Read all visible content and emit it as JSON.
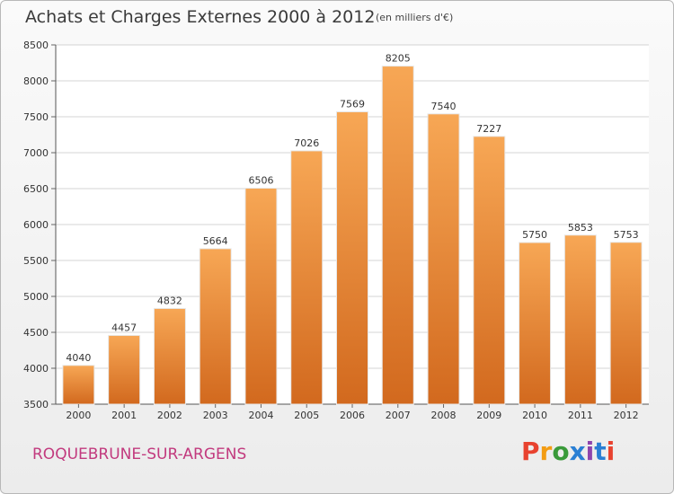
{
  "chart_data": {
    "type": "bar",
    "title": "Achats et Charges Externes 2000 à 2012",
    "subtitle": "(en milliers d'€)",
    "categories": [
      "2000",
      "2001",
      "2002",
      "2003",
      "2004",
      "2005",
      "2006",
      "2007",
      "2008",
      "2009",
      "2010",
      "2011",
      "2012"
    ],
    "values": [
      4040,
      4457,
      4832,
      5664,
      6506,
      7026,
      7569,
      8205,
      7540,
      7227,
      5750,
      5853,
      5753
    ],
    "ylim": [
      3500,
      8500
    ],
    "yticks": [
      3500,
      4000,
      4500,
      5000,
      5500,
      6000,
      6500,
      7000,
      7500,
      8000,
      8500
    ],
    "grid": true,
    "colors": {
      "bar_top": "#f7a755",
      "bar_bottom": "#d2691e",
      "grid": "#d4d4d4"
    }
  },
  "footer": {
    "city": "ROQUEBRUNE-SUR-ARGENS",
    "logo": "Proxiti",
    "logo_colors": [
      "#e8422f",
      "#f39c12",
      "#3a9a3a",
      "#2a7fd4",
      "#8e44ad",
      "#2a7fd4",
      "#e8422f"
    ]
  }
}
